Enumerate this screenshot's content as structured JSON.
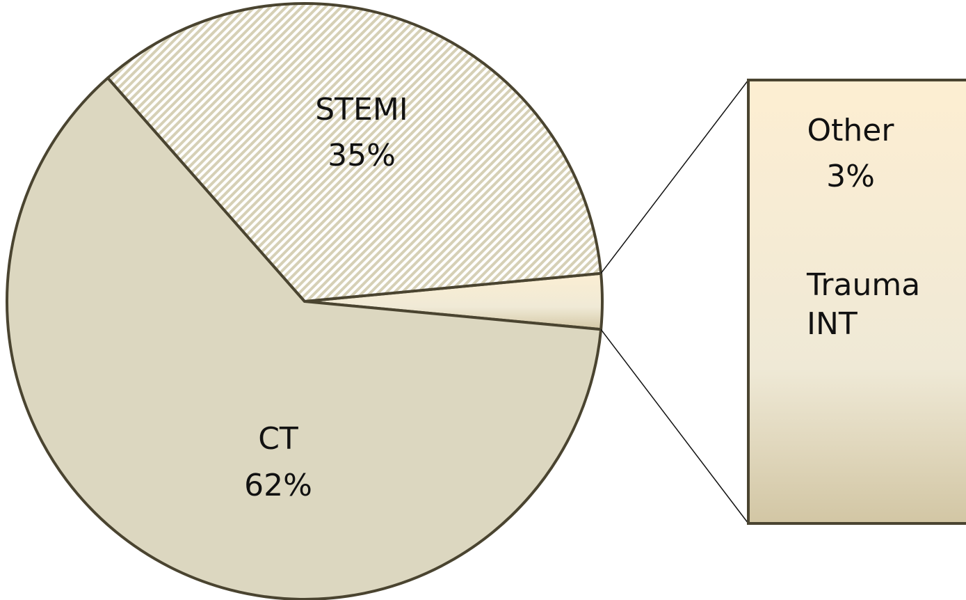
{
  "chart_data": {
    "type": "pie-of-bar",
    "categories": [
      "Other",
      "CT",
      "STEMI"
    ],
    "values": [
      3,
      62,
      35
    ],
    "value_labels": [
      "3%",
      "62%",
      "35%"
    ],
    "colors": [
      "#f6ead0",
      "#dcd7c0",
      "#d6d0b6"
    ],
    "hatched": [
      false,
      false,
      true
    ],
    "bar_of": 0,
    "bar_annotations": [
      "Trauma",
      "INT"
    ],
    "edge_color": "#4a4430"
  }
}
